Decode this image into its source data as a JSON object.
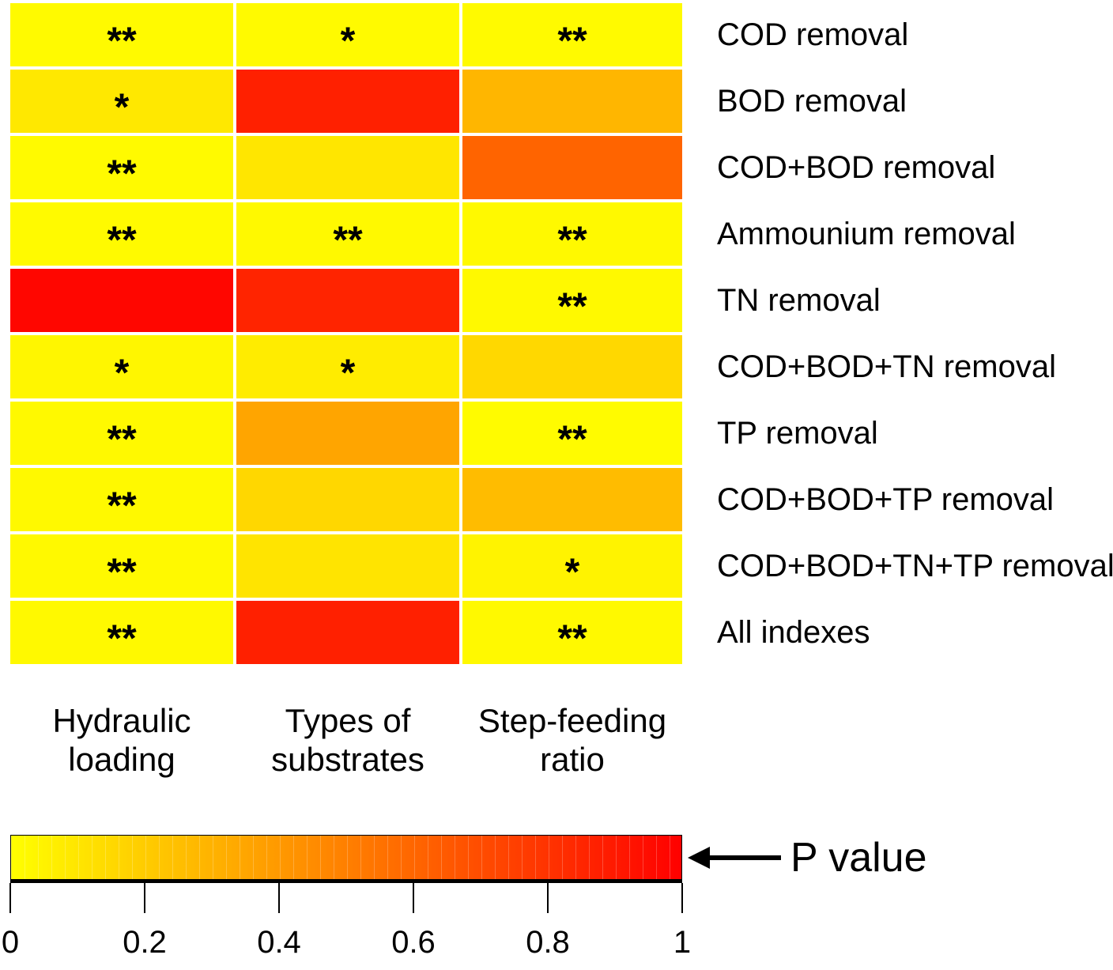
{
  "figure": {
    "row_labels": [
      "COD removal",
      "BOD removal",
      "COD+BOD removal",
      "Ammounium removal",
      "TN removal",
      "COD+BOD+TN removal",
      "TP removal",
      "COD+BOD+TP removal",
      "COD+BOD+TN+TP removal",
      "All indexes"
    ],
    "column_labels": [
      [
        "Hydraulic",
        "loading"
      ],
      [
        "Types of",
        "substrates"
      ],
      [
        "Step-feeding",
        "ratio"
      ]
    ],
    "cells": [
      [
        {
          "color": "#FFFA00",
          "stars": "**"
        },
        {
          "color": "#FFFA00",
          "stars": "*"
        },
        {
          "color": "#FFFA00",
          "stars": "**"
        }
      ],
      [
        {
          "color": "#FFE800",
          "stars": "*"
        },
        {
          "color": "#FF2000",
          "stars": ""
        },
        {
          "color": "#FFB600",
          "stars": ""
        }
      ],
      [
        {
          "color": "#FFFA00",
          "stars": "**"
        },
        {
          "color": "#FFE600",
          "stars": ""
        },
        {
          "color": "#FF6400",
          "stars": ""
        }
      ],
      [
        {
          "color": "#FFFA00",
          "stars": "**"
        },
        {
          "color": "#FFF900",
          "stars": "**"
        },
        {
          "color": "#FFF900",
          "stars": "**"
        }
      ],
      [
        {
          "color": "#FF0600",
          "stars": ""
        },
        {
          "color": "#FF2400",
          "stars": ""
        },
        {
          "color": "#FFF900",
          "stars": "**"
        }
      ],
      [
        {
          "color": "#FFF600",
          "stars": "*"
        },
        {
          "color": "#FFEC00",
          "stars": "*"
        },
        {
          "color": "#FFD800",
          "stars": ""
        }
      ],
      [
        {
          "color": "#FFF900",
          "stars": "**"
        },
        {
          "color": "#FFA500",
          "stars": ""
        },
        {
          "color": "#FFFB00",
          "stars": "**"
        }
      ],
      [
        {
          "color": "#FFF900",
          "stars": "**"
        },
        {
          "color": "#FFD700",
          "stars": ""
        },
        {
          "color": "#FFBC00",
          "stars": ""
        }
      ],
      [
        {
          "color": "#FFF900",
          "stars": "**"
        },
        {
          "color": "#FFE400",
          "stars": ""
        },
        {
          "color": "#FFF300",
          "stars": "*"
        }
      ],
      [
        {
          "color": "#FFF900",
          "stars": "**"
        },
        {
          "color": "#FF2000",
          "stars": ""
        },
        {
          "color": "#FFF900",
          "stars": "**"
        }
      ]
    ]
  },
  "colorbar": {
    "label": "P value",
    "ticks": [
      "0",
      "0.2",
      "0.4",
      "0.6",
      "0.8",
      "1"
    ],
    "min_color": "#FFFF00",
    "max_color": "#FF0000"
  },
  "chart_data": {
    "type": "heatmap",
    "title": "",
    "columns": [
      "Hydraulic loading",
      "Types of substrates",
      "Step-feeding ratio"
    ],
    "rows": [
      "COD removal",
      "BOD removal",
      "COD+BOD removal",
      "Ammounium removal",
      "TN removal",
      "COD+BOD+TN removal",
      "TP removal",
      "COD+BOD+TP removal",
      "COD+BOD+TN+TP removal",
      "All indexes"
    ],
    "p_values_approx": [
      [
        0.02,
        0.02,
        0.02
      ],
      [
        0.09,
        0.87,
        0.29
      ],
      [
        0.02,
        0.1,
        0.61
      ],
      [
        0.02,
        0.02,
        0.02
      ],
      [
        0.98,
        0.86,
        0.02
      ],
      [
        0.04,
        0.07,
        0.15
      ],
      [
        0.02,
        0.35,
        0.02
      ],
      [
        0.02,
        0.16,
        0.26
      ],
      [
        0.02,
        0.11,
        0.05
      ],
      [
        0.02,
        0.87,
        0.02
      ]
    ],
    "significance_markers": [
      [
        "**",
        "*",
        "**"
      ],
      [
        "*",
        "",
        ""
      ],
      [
        "**",
        "",
        ""
      ],
      [
        "**",
        "**",
        "**"
      ],
      [
        "",
        "",
        "**"
      ],
      [
        "*",
        "*",
        ""
      ],
      [
        "**",
        "",
        "**"
      ],
      [
        "**",
        "",
        ""
      ],
      [
        "**",
        "",
        "*"
      ],
      [
        "**",
        "",
        "**"
      ]
    ],
    "colorscale": {
      "label": "P value",
      "range": [
        0,
        1
      ],
      "tick_values": [
        0,
        0.2,
        0.4,
        0.6,
        0.8,
        1
      ],
      "min_color": "#FFFF00",
      "max_color": "#FF0000"
    },
    "legend_position": "bottom"
  }
}
